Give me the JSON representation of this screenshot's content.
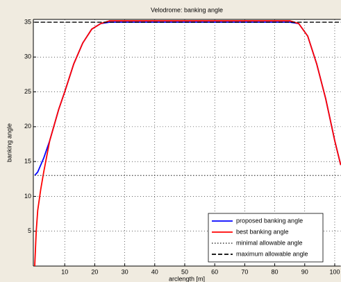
{
  "chart_data": {
    "type": "line",
    "title": "Velodrome: banking angle",
    "x_label": "arclength  [m]",
    "y_label": "banking angle",
    "xlim": [
      0,
      102
    ],
    "ylim": [
      0,
      35.4
    ],
    "xticks": [
      10,
      20,
      30,
      40,
      50,
      60,
      70,
      80,
      90,
      100
    ],
    "yticks": [
      5,
      10,
      15,
      20,
      25,
      30,
      35
    ],
    "grid": true,
    "legend": "lower right",
    "series": [
      {
        "name": "proposed banking angle",
        "color": "#0000ff",
        "dash": "solid",
        "x": [
          0,
          1,
          2,
          3,
          5,
          8,
          10,
          13,
          16,
          19,
          22,
          25,
          85,
          88,
          91,
          94,
          97,
          100,
          102
        ],
        "values": [
          13,
          13.5,
          14.5,
          15.5,
          18,
          22.5,
          25,
          29,
          32,
          34,
          34.8,
          35,
          35,
          34.8,
          33,
          29,
          24,
          18,
          14.5
        ]
      },
      {
        "name": "best banking angle",
        "color": "#ff0000",
        "dash": "solid",
        "x": [
          0,
          0.5,
          1,
          2,
          3,
          5,
          8,
          10,
          13,
          16,
          19,
          22,
          25,
          85,
          88,
          91,
          94,
          97,
          100,
          102
        ],
        "values": [
          0,
          5,
          8,
          11,
          13.5,
          18,
          22.5,
          25,
          29,
          32,
          34,
          34.8,
          35.2,
          35.2,
          34.8,
          33,
          29,
          24,
          18,
          14.5
        ]
      },
      {
        "name": "minimal allowable angle",
        "color": "#555555",
        "dash": "dotted",
        "x": [
          0,
          102
        ],
        "values": [
          13,
          13
        ]
      },
      {
        "name": "maximum allowable angle",
        "color": "#000000",
        "dash": "dashed",
        "x": [
          0,
          102
        ],
        "values": [
          35,
          35
        ]
      }
    ]
  }
}
